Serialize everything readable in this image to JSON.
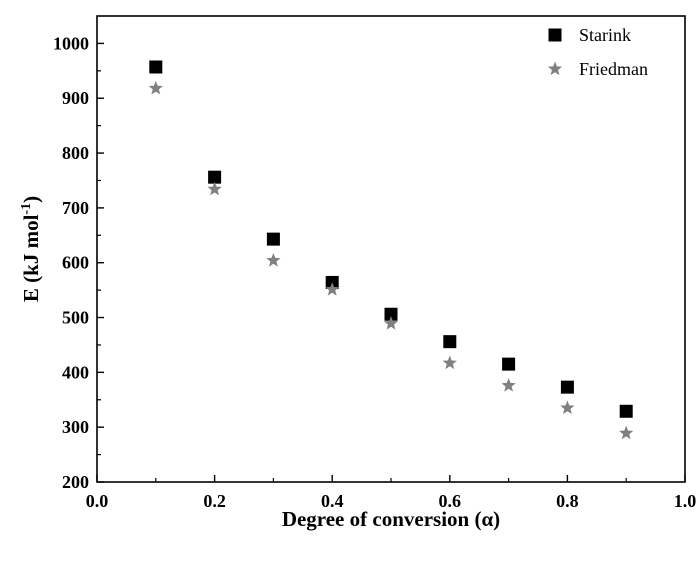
{
  "chart_data": {
    "type": "scatter",
    "xlabel": "Degree of conversion (α)",
    "ylabel": "E (kJ mol",
    "ylabel_superscript": "-1",
    "ylabel_suffix": ")",
    "xlim": [
      0.0,
      1.0
    ],
    "ylim": [
      200,
      1050
    ],
    "x_ticks": [
      "0.0",
      "0.2",
      "0.4",
      "0.6",
      "0.8",
      "1.0"
    ],
    "y_ticks": [
      "200",
      "300",
      "400",
      "500",
      "600",
      "700",
      "800",
      "900",
      "1000"
    ],
    "grid": false,
    "legend_position": "top-right",
    "series": [
      {
        "name": "Starink",
        "marker": "square",
        "color": "#000000",
        "x": [
          0.1,
          0.2,
          0.3,
          0.4,
          0.5,
          0.6,
          0.7,
          0.8,
          0.9
        ],
        "y": [
          957,
          756,
          643,
          564,
          506,
          456,
          415,
          373,
          329
        ]
      },
      {
        "name": "Friedman",
        "marker": "star",
        "color": "#808080",
        "x": [
          0.1,
          0.2,
          0.3,
          0.4,
          0.5,
          0.6,
          0.7,
          0.8,
          0.9
        ],
        "y": [
          918,
          734,
          604,
          551,
          489,
          417,
          376,
          335,
          289
        ]
      }
    ]
  }
}
